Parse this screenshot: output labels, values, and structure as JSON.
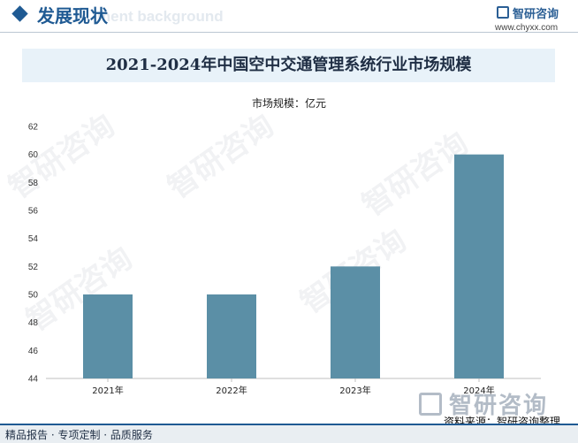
{
  "header": {
    "section_title": "发展现状",
    "section_subtitle": "ment background",
    "brand_name": "智研咨询",
    "brand_url": "www.chyxx.com"
  },
  "chart_title": "2021-2024年中国空中交通管理系统行业市场规模",
  "unit_label": "市场规模：亿元",
  "chart_data": {
    "type": "bar",
    "title": "2021-2024年中国空中交通管理系统行业市场规模",
    "ylabel": "市场规模：亿元",
    "categories": [
      "2021年",
      "2022年",
      "2023年",
      "2024年"
    ],
    "values": [
      50,
      50,
      52,
      60
    ],
    "ylim": [
      44,
      62
    ],
    "yticks": [
      44,
      46,
      48,
      50,
      52,
      54,
      56,
      58,
      60,
      62
    ],
    "bar_color": "#5b8fa6",
    "grid": false
  },
  "footer": {
    "watermark_brand": "智研咨询",
    "source": "资料来源：智研咨询整理",
    "tagline": "精品报告 · 专项定制 · 品质服务",
    "accent_color": "#1f5a93"
  }
}
